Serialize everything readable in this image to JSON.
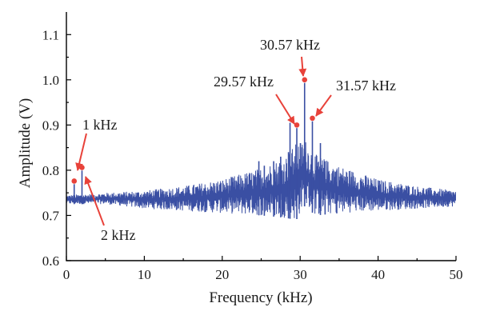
{
  "chart_data": {
    "type": "line",
    "xlabel": "Frequency (kHz)",
    "ylabel": "Amplitude (V)",
    "xlim": [
      0,
      50
    ],
    "ylim": [
      0.6,
      1.15
    ],
    "xticks": [
      0,
      10,
      20,
      30,
      40,
      50
    ],
    "yticks": [
      0.6,
      0.7,
      0.8,
      0.9,
      1.0,
      1.1
    ],
    "xtick_labels": [
      "0",
      "10",
      "20",
      "30",
      "40",
      "50"
    ],
    "ytick_labels": [
      "0.6",
      "0.7",
      "0.8",
      "0.9",
      "1.0",
      "1.1"
    ],
    "grid": false,
    "legend": "none",
    "series": [
      {
        "color": "#3a4fa3",
        "envelope_lower": [
          [
            0,
            0.725
          ],
          [
            5,
            0.725
          ],
          [
            10,
            0.715
          ],
          [
            15,
            0.71
          ],
          [
            20,
            0.705
          ],
          [
            25,
            0.7
          ],
          [
            28,
            0.695
          ],
          [
            29.5,
            0.69
          ],
          [
            30.57,
            0.72
          ],
          [
            32,
            0.7
          ],
          [
            35,
            0.705
          ],
          [
            40,
            0.71
          ],
          [
            45,
            0.715
          ],
          [
            50,
            0.72
          ]
        ],
        "envelope_upper": [
          [
            0,
            0.745
          ],
          [
            5,
            0.75
          ],
          [
            10,
            0.755
          ],
          [
            15,
            0.765
          ],
          [
            20,
            0.78
          ],
          [
            25,
            0.805
          ],
          [
            28,
            0.83
          ],
          [
            29.5,
            0.86
          ],
          [
            30.57,
            0.87
          ],
          [
            32,
            0.835
          ],
          [
            35,
            0.81
          ],
          [
            40,
            0.78
          ],
          [
            45,
            0.765
          ],
          [
            50,
            0.755
          ]
        ],
        "spikes": [
          [
            1,
            0.776
          ],
          [
            2,
            0.806
          ],
          [
            24.7,
            0.82
          ],
          [
            25.4,
            0.81
          ],
          [
            26.6,
            0.82
          ],
          [
            27.5,
            0.83
          ],
          [
            28.5,
            0.84
          ],
          [
            28.7,
            0.905
          ],
          [
            29.57,
            0.9
          ],
          [
            30.57,
            1.0
          ],
          [
            31.57,
            0.915
          ],
          [
            32.6,
            0.86
          ],
          [
            33.2,
            0.82
          ],
          [
            34.7,
            0.8
          ]
        ]
      }
    ],
    "markers": [
      {
        "x": 1,
        "y": 0.776,
        "color": "#e8423a"
      },
      {
        "x": 2,
        "y": 0.806,
        "color": "#e8423a"
      },
      {
        "x": 29.57,
        "y": 0.9,
        "color": "#e8423a"
      },
      {
        "x": 30.57,
        "y": 1.0,
        "color": "#e8423a"
      },
      {
        "x": 31.57,
        "y": 0.915,
        "color": "#e8423a"
      }
    ],
    "annotations": [
      {
        "text": "1 kHz",
        "x": 1,
        "y": 0.776
      },
      {
        "text": "2 kHz",
        "x": 2,
        "y": 0.806
      },
      {
        "text": "29.57 kHz",
        "x": 29.57,
        "y": 0.9
      },
      {
        "text": "30.57 kHz",
        "x": 30.57,
        "y": 1.0
      },
      {
        "text": "31.57 kHz",
        "x": 31.57,
        "y": 0.915
      }
    ],
    "arrow_color": "#e8423a"
  }
}
